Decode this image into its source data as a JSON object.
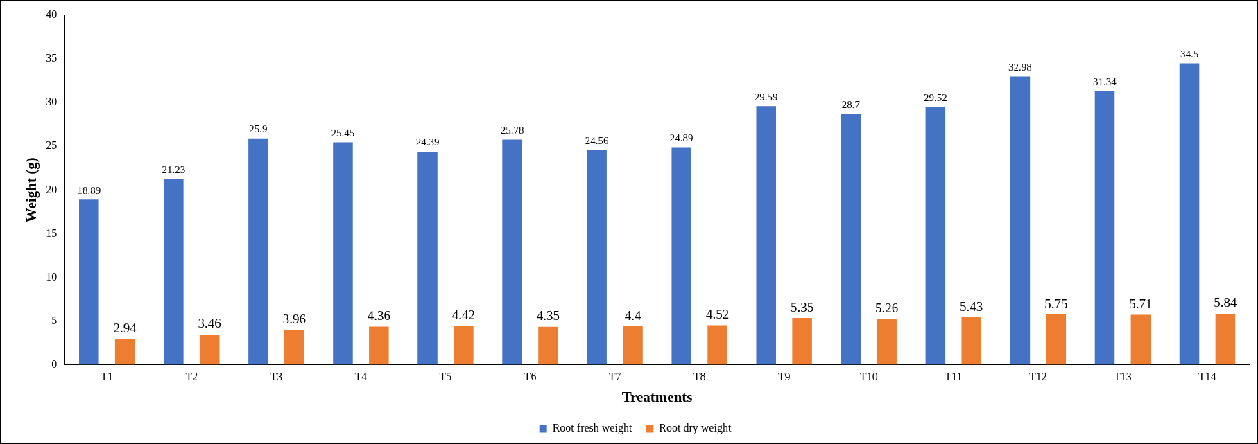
{
  "chart_data": {
    "type": "bar",
    "xlabel": "Treatments",
    "ylabel": "Weight (g)",
    "categories": [
      "T1",
      "T2",
      "T3",
      "T4",
      "T5",
      "T6",
      "T7",
      "T8",
      "T9",
      "T10",
      "T11",
      "T12",
      "T13",
      "T14"
    ],
    "series": [
      {
        "name": "Root fresh weight",
        "color": "#4472c4",
        "values": [
          18.89,
          21.23,
          25.9,
          25.45,
          24.39,
          25.78,
          24.56,
          24.89,
          29.59,
          28.7,
          29.52,
          32.98,
          31.34,
          34.5
        ]
      },
      {
        "name": "Root dry weight",
        "color": "#ed7d31",
        "values": [
          2.94,
          3.46,
          3.96,
          4.36,
          4.42,
          4.35,
          4.4,
          4.52,
          5.35,
          5.26,
          5.43,
          5.75,
          5.71,
          5.84
        ]
      }
    ],
    "ylim": [
      0,
      40
    ],
    "yticks": [
      0,
      5,
      10,
      15,
      20,
      25,
      30,
      35,
      40
    ],
    "grid": false,
    "legend": "bottom",
    "data_labels": true
  }
}
